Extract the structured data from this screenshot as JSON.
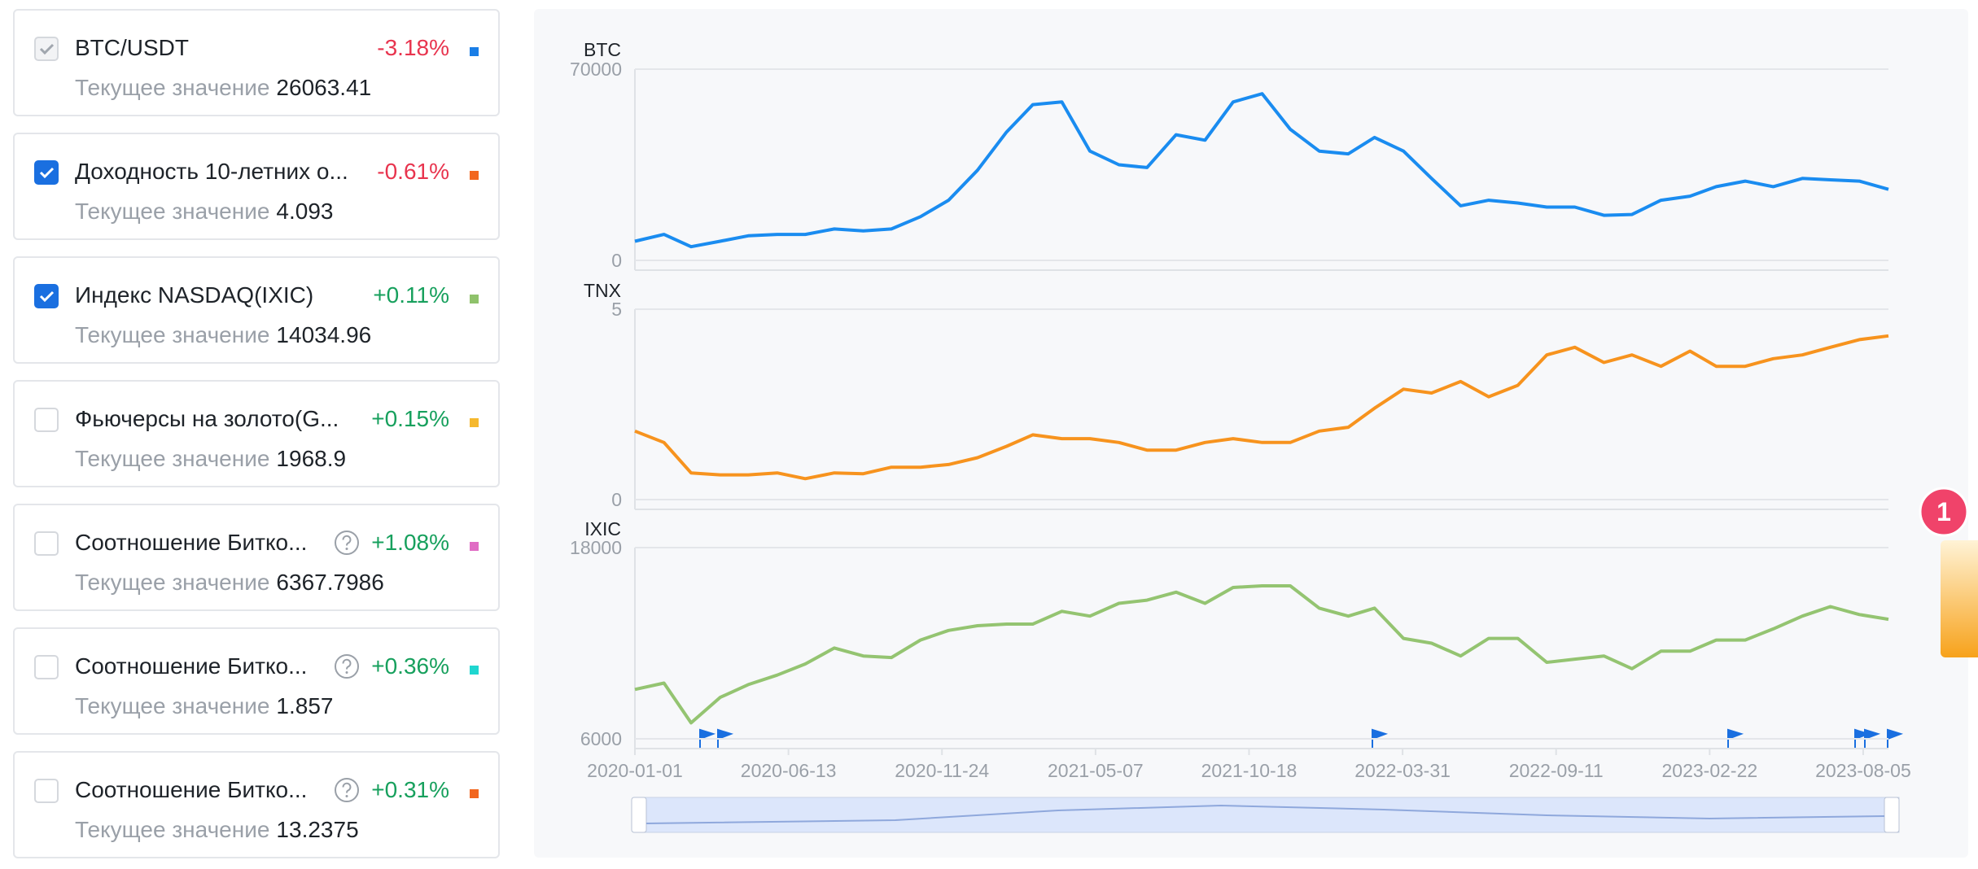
{
  "sidebar": [
    {
      "name": "BTC/USDT",
      "change": "-3.18%",
      "label": "Текущее значение",
      "value": "26063.41",
      "color": "#1a7ee6",
      "checkbox": "checked-disabled",
      "help": false
    },
    {
      "name": "Доходность 10-летних о...",
      "change": "-0.61%",
      "label": "Текущее значение",
      "value": "4.093",
      "color": "#f2661e",
      "checkbox": "checked",
      "help": false
    },
    {
      "name": "Индекс NASDAQ(IXIC)",
      "change": "+0.11%",
      "label": "Текущее значение",
      "value": "14034.96",
      "color": "#8fc26b",
      "checkbox": "checked",
      "help": false
    },
    {
      "name": "Фьючерсы на золото(G...",
      "change": "+0.15%",
      "label": "Текущее значение",
      "value": "1968.9",
      "color": "#f5b82e",
      "checkbox": "unchecked",
      "help": false
    },
    {
      "name": "Соотношение Битко...",
      "change": "+1.08%",
      "label": "Текущее значение",
      "value": "6367.7986",
      "color": "#e06cc4",
      "checkbox": "unchecked",
      "help": true
    },
    {
      "name": "Соотношение Битко...",
      "change": "+0.36%",
      "label": "Текущее значение",
      "value": "1.857",
      "color": "#1fd6d0",
      "checkbox": "unchecked",
      "help": true
    },
    {
      "name": "Соотношение Битко...",
      "change": "+0.31%",
      "label": "Текущее значение",
      "value": "13.2375",
      "color": "#f2661e",
      "checkbox": "unchecked",
      "help": true
    }
  ],
  "badge": "1",
  "chart_data": [
    {
      "type": "line",
      "title": "BTC",
      "color": "#1a8cf0",
      "x": [
        "2020-01-01",
        "2020-02-01",
        "2020-03-01",
        "2020-04-01",
        "2020-05-01",
        "2020-06-01",
        "2020-07-01",
        "2020-08-01",
        "2020-09-01",
        "2020-10-01",
        "2020-11-01",
        "2020-12-01",
        "2021-01-01",
        "2021-02-01",
        "2021-03-01",
        "2021-04-01",
        "2021-05-01",
        "2021-06-01",
        "2021-07-01",
        "2021-08-01",
        "2021-09-01",
        "2021-10-01",
        "2021-11-01",
        "2021-12-01",
        "2022-01-01",
        "2022-02-01",
        "2022-03-01",
        "2022-04-01",
        "2022-05-01",
        "2022-06-01",
        "2022-07-01",
        "2022-08-01",
        "2022-09-01",
        "2022-10-01",
        "2022-11-01",
        "2022-12-01",
        "2023-01-01",
        "2023-02-01",
        "2023-03-01",
        "2023-04-01",
        "2023-05-01",
        "2023-06-01",
        "2023-07-01",
        "2023-08-01",
        "2023-09-01"
      ],
      "values": [
        7000,
        9500,
        5000,
        7000,
        9000,
        9500,
        9500,
        11500,
        10800,
        11500,
        16000,
        22000,
        33000,
        47000,
        57000,
        58000,
        40000,
        35000,
        34000,
        46000,
        44000,
        58000,
        61000,
        48000,
        40000,
        39000,
        45000,
        40000,
        30000,
        20000,
        22000,
        21000,
        19500,
        19500,
        16500,
        16800,
        22000,
        23500,
        27000,
        29000,
        27000,
        30000,
        29500,
        29000,
        26000
      ],
      "xlim": [
        "2020-01-01",
        "2023-09-01"
      ],
      "ylim": [
        0,
        70000
      ],
      "yticks": [
        0,
        70000
      ]
    },
    {
      "type": "line",
      "title": "TNX",
      "color": "#f7931e",
      "x": [
        "2020-01-01",
        "2020-02-01",
        "2020-03-01",
        "2020-04-01",
        "2020-05-01",
        "2020-06-01",
        "2020-07-01",
        "2020-08-01",
        "2020-09-01",
        "2020-10-01",
        "2020-11-01",
        "2020-12-01",
        "2021-01-01",
        "2021-02-01",
        "2021-03-01",
        "2021-04-01",
        "2021-05-01",
        "2021-06-01",
        "2021-07-01",
        "2021-08-01",
        "2021-09-01",
        "2021-10-01",
        "2021-11-01",
        "2021-12-01",
        "2022-01-01",
        "2022-02-01",
        "2022-03-01",
        "2022-04-01",
        "2022-05-01",
        "2022-06-01",
        "2022-07-01",
        "2022-08-01",
        "2022-09-01",
        "2022-10-01",
        "2022-11-01",
        "2022-12-01",
        "2023-01-01",
        "2023-02-01",
        "2023-03-01",
        "2023-04-01",
        "2023-05-01",
        "2023-06-01",
        "2023-07-01",
        "2023-08-01",
        "2023-09-01"
      ],
      "values": [
        1.8,
        1.5,
        0.7,
        0.65,
        0.65,
        0.7,
        0.55,
        0.7,
        0.68,
        0.85,
        0.85,
        0.92,
        1.1,
        1.4,
        1.7,
        1.6,
        1.6,
        1.5,
        1.3,
        1.3,
        1.5,
        1.6,
        1.5,
        1.5,
        1.8,
        1.9,
        2.4,
        2.9,
        2.8,
        3.1,
        2.7,
        3.0,
        3.8,
        4.0,
        3.6,
        3.8,
        3.5,
        3.9,
        3.5,
        3.5,
        3.7,
        3.8,
        4.0,
        4.2,
        4.3
      ],
      "xlim": [
        "2020-01-01",
        "2023-09-01"
      ],
      "ylim": [
        0,
        5
      ],
      "yticks": [
        0,
        5
      ]
    },
    {
      "type": "line",
      "title": "IXIC",
      "color": "#94c471",
      "x": [
        "2020-01-01",
        "2020-02-01",
        "2020-03-01",
        "2020-04-01",
        "2020-05-01",
        "2020-06-01",
        "2020-07-01",
        "2020-08-01",
        "2020-09-01",
        "2020-10-01",
        "2020-11-01",
        "2020-12-01",
        "2021-01-01",
        "2021-02-01",
        "2021-03-01",
        "2021-04-01",
        "2021-05-01",
        "2021-06-01",
        "2021-07-01",
        "2021-08-01",
        "2021-09-01",
        "2021-10-01",
        "2021-11-01",
        "2021-12-01",
        "2022-01-01",
        "2022-02-01",
        "2022-03-01",
        "2022-04-01",
        "2022-05-01",
        "2022-06-01",
        "2022-07-01",
        "2022-08-01",
        "2022-09-01",
        "2022-10-01",
        "2022-11-01",
        "2022-12-01",
        "2023-01-01",
        "2023-02-01",
        "2023-03-01",
        "2023-04-01",
        "2023-05-01",
        "2023-06-01",
        "2023-07-01",
        "2023-08-01",
        "2023-09-01"
      ],
      "values": [
        9100,
        9500,
        7000,
        8600,
        9400,
        10000,
        10700,
        11700,
        11200,
        11100,
        12200,
        12800,
        13100,
        13200,
        13200,
        14000,
        13700,
        14500,
        14700,
        15200,
        14500,
        15500,
        15600,
        15600,
        14200,
        13700,
        14200,
        12300,
        12000,
        11200,
        12300,
        12300,
        10800,
        11000,
        11200,
        10400,
        11500,
        11500,
        12200,
        12200,
        12900,
        13700,
        14300,
        13800,
        13500
      ],
      "xlim": [
        "2020-01-01",
        "2023-09-01"
      ],
      "ylim": [
        6000,
        18000
      ],
      "yticks": [
        6000,
        18000
      ],
      "xticks": [
        "2020-01-01",
        "2020-06-13",
        "2020-11-24",
        "2021-05-07",
        "2021-10-18",
        "2022-03-31",
        "2022-09-11",
        "2023-02-22",
        "2023-08-05"
      ]
    }
  ]
}
